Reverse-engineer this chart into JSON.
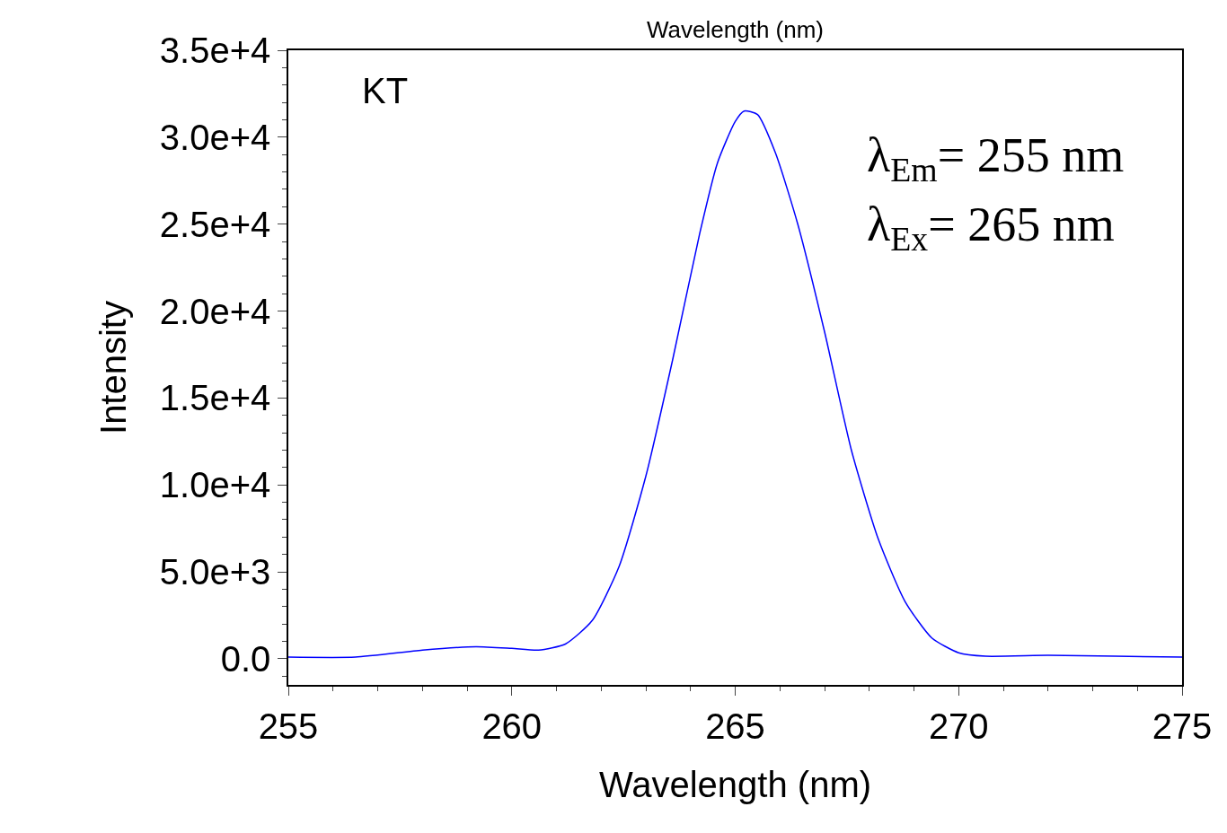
{
  "chart_data": {
    "type": "line",
    "xlabel": "Wavelength (nm)",
    "ylabel": "Intensity",
    "x": [
      255,
      256.5,
      258,
      259.2,
      260,
      260.6,
      261.2,
      261.8,
      262.4,
      263,
      263.6,
      264.2,
      264.6,
      265,
      265.2,
      265.5,
      265.9,
      266.4,
      267,
      267.6,
      268.2,
      268.8,
      269.4,
      270,
      270.6,
      272,
      273.5,
      275
    ],
    "series": [
      {
        "color": "#0000ff",
        "values": [
          100,
          100,
          500,
          700,
          600,
          500,
          850,
          2200,
          5300,
          10500,
          17200,
          24400,
          28500,
          30900,
          31500,
          31300,
          29100,
          25000,
          18800,
          12000,
          6900,
          3300,
          1200,
          350,
          150,
          200,
          150,
          100
        ]
      }
    ],
    "xlim": [
      255,
      275
    ],
    "xticks": [
      255,
      260,
      265,
      270,
      275
    ],
    "ylim": [
      -1500,
      35000
    ],
    "yticks": [
      {
        "value": 0,
        "label": "0.0"
      },
      {
        "value": 5000,
        "label": "5.0e+3"
      },
      {
        "value": 10000,
        "label": "1.0e+4"
      },
      {
        "value": 15000,
        "label": "1.5e+4"
      },
      {
        "value": 20000,
        "label": "2.0e+4"
      },
      {
        "value": 25000,
        "label": "2.5e+4"
      },
      {
        "value": 30000,
        "label": "3.0e+4"
      },
      {
        "value": 35000,
        "label": "3.5e+4"
      }
    ],
    "marker": "none",
    "line_style": "solid",
    "annotations": [
      "Wavelength (nm)",
      "KT",
      "λ$_{Em}$= 255 nm",
      "λ$_{Ex}$= 265 nm"
    ]
  }
}
